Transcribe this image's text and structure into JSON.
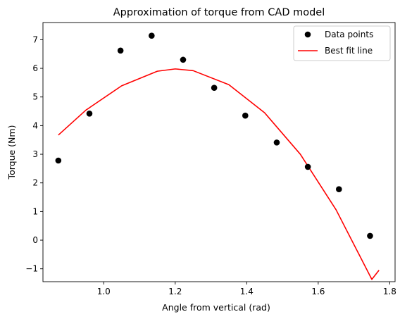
{
  "chart_data": {
    "type": "scatter",
    "title": "Approximation of torque from CAD model",
    "xlabel": "Angle from vertical (rad)",
    "ylabel": "Torque (Nm)",
    "xlim": [
      0.83,
      1.815
    ],
    "ylim": [
      -1.45,
      7.6
    ],
    "x_ticks": [
      1.0,
      1.2,
      1.4,
      1.6,
      1.8
    ],
    "x_tick_labels": [
      "1.0",
      "1.2",
      "1.4",
      "1.6",
      "1.8"
    ],
    "y_ticks": [
      -1,
      0,
      1,
      2,
      3,
      4,
      5,
      6,
      7
    ],
    "y_tick_labels": [
      "−1",
      "0",
      "1",
      "2",
      "3",
      "4",
      "5",
      "6",
      "7"
    ],
    "grid": false,
    "legend_position": "top-right",
    "series": [
      {
        "name": "Data points",
        "kind": "scatter",
        "color": "#000000",
        "x": [
          0.873,
          0.96,
          1.047,
          1.134,
          1.222,
          1.309,
          1.396,
          1.484,
          1.571,
          1.658,
          1.745
        ],
        "y": [
          2.78,
          4.42,
          6.62,
          7.14,
          6.3,
          5.32,
          4.35,
          3.41,
          2.56,
          1.78,
          0.15
        ]
      },
      {
        "name": "Best fit line",
        "kind": "line",
        "color": "#ff0000",
        "x": [
          0.873,
          0.95,
          1.05,
          1.15,
          1.2,
          1.25,
          1.35,
          1.45,
          1.55,
          1.65,
          1.75,
          1.77
        ],
        "y": [
          3.67,
          4.54,
          5.39,
          5.9,
          5.98,
          5.92,
          5.43,
          4.45,
          3.0,
          1.06,
          -1.37,
          -1.05
        ]
      }
    ]
  }
}
